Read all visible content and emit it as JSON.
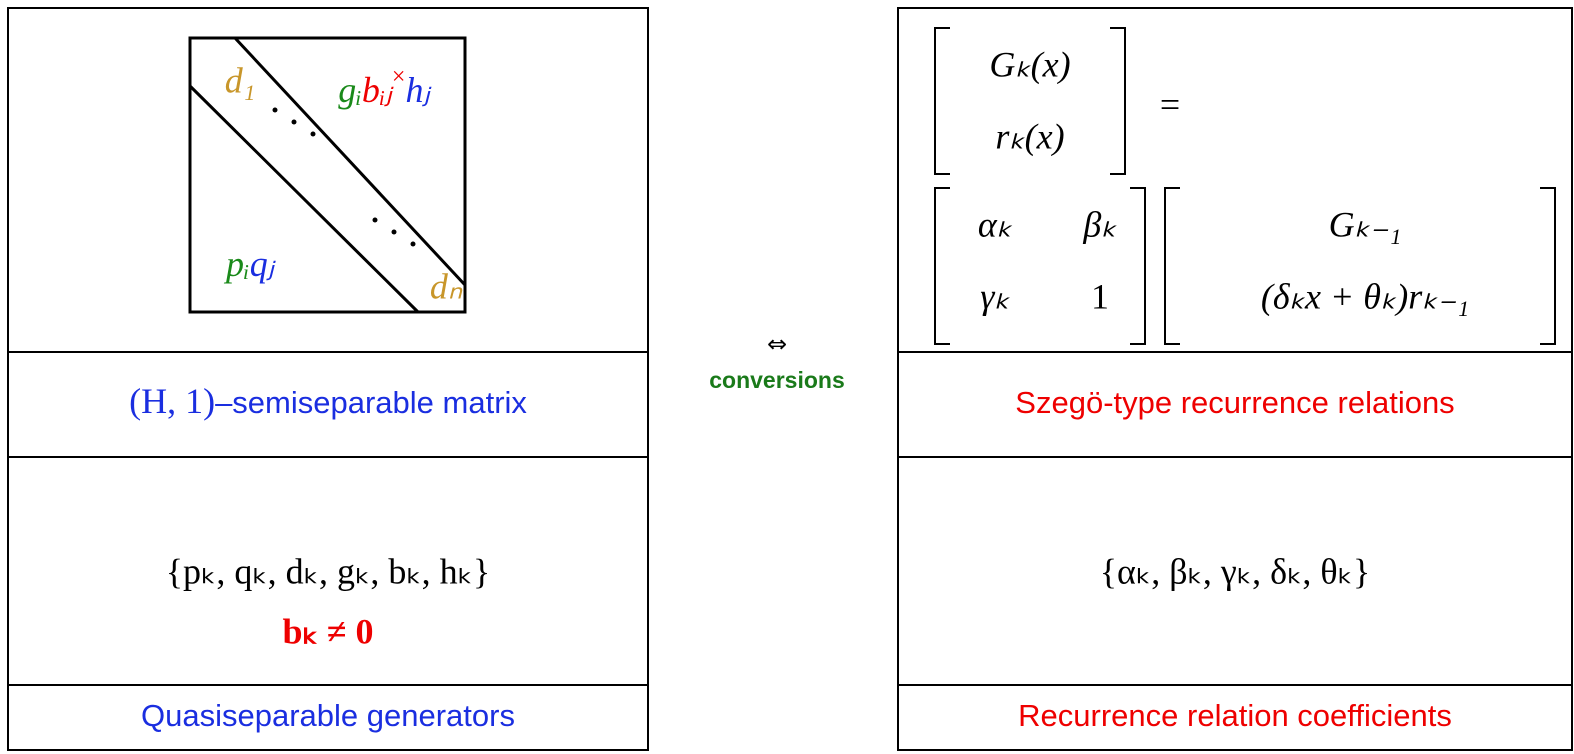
{
  "left": {
    "matrix": {
      "d1": "d₁",
      "dn": "dₙ",
      "g": "gᵢ",
      "b": "bᵢⱼ",
      "b_sup": "×",
      "h": "hⱼ",
      "p": "pᵢ",
      "q": "qⱼ"
    },
    "title": {
      "math": "(H, 1)",
      "text": "–semiseparable matrix"
    },
    "generators": "{pₖ, qₖ, dₖ, gₖ, bₖ, hₖ}",
    "condition": "bₖ ≠ 0",
    "caption": "Quasiseparable generators"
  },
  "middle": {
    "symbol": "⇔",
    "label": "conversions"
  },
  "right": {
    "equation": {
      "lhs": [
        "Gₖ(x)",
        "rₖ(x)"
      ],
      "eq": "=",
      "coef": [
        "αₖ",
        "βₖ",
        "γₖ",
        "1"
      ],
      "vec": [
        "Gₖ₋₁",
        "(δₖx + θₖ)rₖ₋₁"
      ]
    },
    "title": "Szegö-type recurrence relations",
    "coefficients": "{αₖ, βₖ, γₖ, δₖ, θₖ}",
    "caption": "Recurrence relation coefficients"
  }
}
